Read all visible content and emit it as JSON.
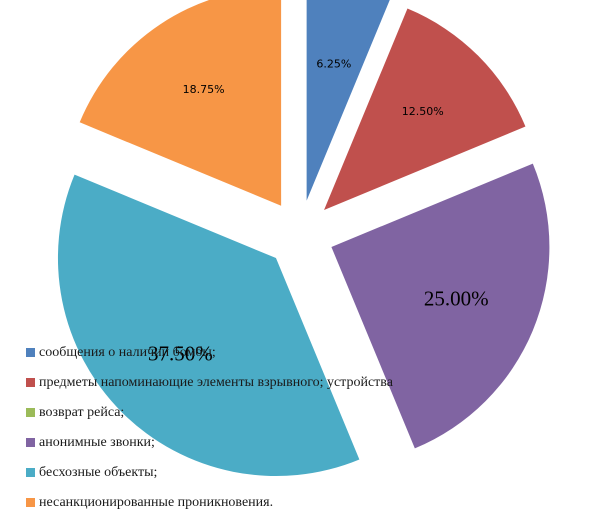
{
  "chart_data": {
    "type": "pie",
    "exploded": true,
    "legend_position": "bottom-left",
    "slices": [
      {
        "label": "сообщения о наличии бомбы;",
        "value": 6.25,
        "value_label": "6.25%",
        "color": "#4F81BD"
      },
      {
        "label": "предметы напоминающие элементы взрывного; устройства",
        "value": 12.5,
        "value_label": "12.50%",
        "color": "#C0504D"
      },
      {
        "label": "возврат рейса;",
        "value": 0,
        "value_label": "",
        "color": "#9BBB59"
      },
      {
        "label": "анонимные звонки;",
        "value": 25,
        "value_label": "25.00%",
        "color": "#8064A2"
      },
      {
        "label": "бесхозные объекты;",
        "value": 37.5,
        "value_label": "37.50%",
        "color": "#4BACC6"
      },
      {
        "label": "несанкционированные проникновения.",
        "value": 18.75,
        "value_label": "18.75%",
        "color": "#F79646"
      }
    ]
  }
}
